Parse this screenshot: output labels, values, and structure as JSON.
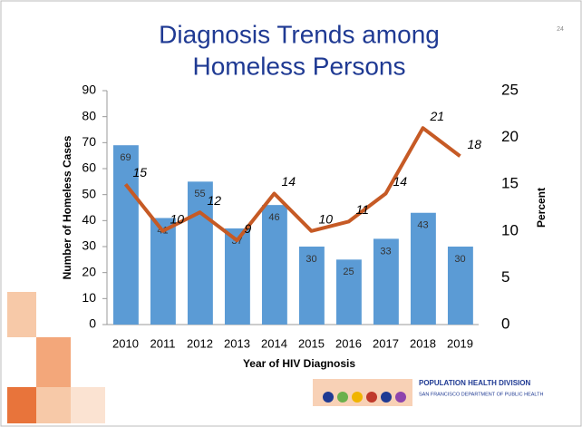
{
  "chart_data": {
    "type": "bar-line",
    "title": "Diagnosis Trends among Homeless Persons",
    "categories": [
      "2010",
      "2011",
      "2012",
      "2013",
      "2014",
      "2015",
      "2016",
      "2017",
      "2018",
      "2019"
    ],
    "series": [
      {
        "name": "Number of Homeless Cases",
        "type": "bar",
        "color": "#5b9bd5",
        "values": [
          69,
          41,
          55,
          37,
          46,
          30,
          25,
          33,
          43,
          30
        ]
      },
      {
        "name": "Percent",
        "type": "line",
        "axis": "y2",
        "color": "#c65a25",
        "values": [
          15,
          10,
          12,
          9,
          14,
          10,
          11,
          14,
          21,
          18
        ]
      }
    ],
    "x_label": "Year of HIV Diagnosis",
    "y_label": "Number of Homeless Cases",
    "y2_label": "Percent",
    "ylim": [
      0,
      90
    ],
    "yticks": [
      0,
      10,
      20,
      30,
      40,
      50,
      60,
      70,
      80,
      90
    ],
    "y2lim": [
      0,
      25
    ],
    "y2ticks": [
      0,
      5,
      10,
      15,
      20,
      25
    ]
  },
  "slide_number": "24",
  "footer": {
    "division": "POPULATION HEALTH DIVISION",
    "department": "SAN FRANCISCO DEPARTMENT OF PUBLIC HEALTH"
  }
}
